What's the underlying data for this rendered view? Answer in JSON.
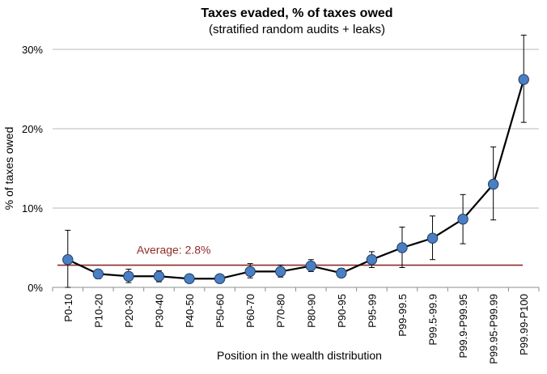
{
  "chart_data": {
    "type": "line",
    "title": "Taxes evaded, % of taxes owed",
    "subtitle": "(stratified random audits + leaks)",
    "xlabel": "Position in the wealth distribution",
    "ylabel": "% of taxes owed",
    "ylim": [
      0,
      30
    ],
    "yticks": [
      0,
      10,
      20,
      30
    ],
    "ytick_labels": [
      "0%",
      "10%",
      "20%",
      "30%"
    ],
    "grid": true,
    "categories": [
      "P0-10",
      "P10-20",
      "P20-30",
      "P30-40",
      "P40-50",
      "P50-60",
      "P60-70",
      "P70-80",
      "P80-90",
      "P90-95",
      "P95-99",
      "P99-99.5",
      "P99.5-99.9",
      "P99.9-P99.95",
      "P99.95-P99.99",
      "P99.99-P100"
    ],
    "series": [
      {
        "values": [
          3.5,
          1.7,
          1.4,
          1.4,
          1.1,
          1.1,
          2.0,
          2.0,
          2.7,
          1.8,
          3.5,
          5.0,
          6.2,
          8.6,
          13.0,
          26.2
        ],
        "err_low": [
          0.0,
          1.1,
          0.6,
          0.7,
          0.8,
          1.0,
          1.2,
          1.3,
          2.0,
          1.3,
          2.5,
          2.5,
          3.5,
          5.5,
          8.5,
          20.8
        ],
        "err_high": [
          7.2,
          2.2,
          2.3,
          2.1,
          1.4,
          1.3,
          3.0,
          2.8,
          3.5,
          2.4,
          4.5,
          7.6,
          9.0,
          11.7,
          17.7,
          31.8
        ],
        "color": "#4a7fc1"
      }
    ],
    "average": {
      "value": 2.8,
      "label": "Average: 2.8%",
      "color": "#8e2c2a"
    }
  }
}
